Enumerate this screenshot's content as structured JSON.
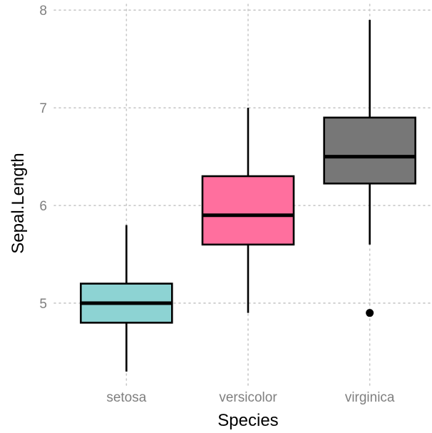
{
  "chart_data": {
    "type": "box",
    "xlabel": "Species",
    "ylabel": "Sepal.Length",
    "ylim": [
      4.16,
      8.06
    ],
    "yticks": [
      5,
      6,
      7,
      8
    ],
    "grid": true,
    "legend": "none",
    "categories": [
      "setosa",
      "versicolor",
      "virginica"
    ],
    "colors": [
      "#8dd3d3",
      "#ff6f9e",
      "#777777"
    ],
    "boxes": [
      {
        "name": "setosa",
        "min": 4.3,
        "q1": 4.8,
        "median": 5.0,
        "q3": 5.2,
        "max": 5.8,
        "outliers": []
      },
      {
        "name": "versicolor",
        "min": 4.9,
        "q1": 5.6,
        "median": 5.9,
        "q3": 6.3,
        "max": 7.0,
        "outliers": []
      },
      {
        "name": "virginica",
        "min": 5.6,
        "q1": 6.225,
        "median": 6.5,
        "q3": 6.9,
        "max": 7.9,
        "outliers": [
          4.9
        ]
      }
    ]
  }
}
